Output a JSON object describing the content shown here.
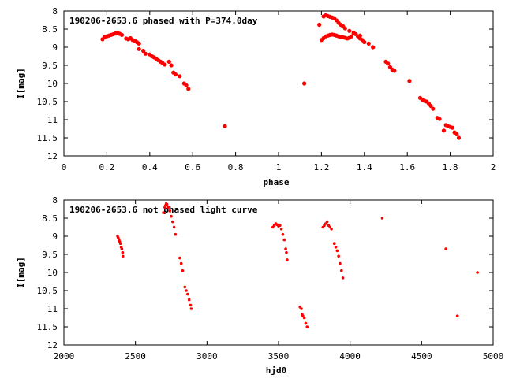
{
  "chart_data": [
    {
      "type": "scatter",
      "title": "190206-2653.6 phased with P=374.0day",
      "xlabel": "phase",
      "ylabel": "I[mag]",
      "xlim": [
        0,
        2
      ],
      "ylim": [
        12,
        8
      ],
      "y_inverted": true,
      "xticks": [
        0,
        0.2,
        0.4,
        0.6,
        0.8,
        1,
        1.2,
        1.4,
        1.6,
        1.8,
        2
      ],
      "xtick_labels": [
        "0",
        "0.2",
        "0.4",
        "0.6",
        "0.8",
        "1",
        "1.2",
        "1.4",
        "1.6",
        "1.8",
        "2"
      ],
      "yticks": [
        8,
        8.5,
        9,
        9.5,
        10,
        10.5,
        11,
        11.5,
        12
      ],
      "ytick_labels": [
        "8",
        "8.5",
        "9",
        "9.5",
        "10",
        "10.5",
        "11",
        "11.5",
        "12"
      ],
      "marker_color": "#ff0000",
      "points": [
        [
          0.18,
          8.78
        ],
        [
          0.19,
          8.72
        ],
        [
          0.2,
          8.7
        ],
        [
          0.21,
          8.68
        ],
        [
          0.22,
          8.66
        ],
        [
          0.23,
          8.64
        ],
        [
          0.24,
          8.62
        ],
        [
          0.25,
          8.6
        ],
        [
          0.26,
          8.63
        ],
        [
          0.27,
          8.66
        ],
        [
          0.29,
          8.76
        ],
        [
          0.3,
          8.78
        ],
        [
          0.31,
          8.75
        ],
        [
          0.32,
          8.8
        ],
        [
          0.33,
          8.82
        ],
        [
          0.34,
          8.86
        ],
        [
          0.35,
          8.9
        ],
        [
          0.35,
          9.05
        ],
        [
          0.37,
          9.1
        ],
        [
          0.38,
          9.18
        ],
        [
          0.4,
          9.2
        ],
        [
          0.41,
          9.25
        ],
        [
          0.42,
          9.28
        ],
        [
          0.43,
          9.32
        ],
        [
          0.44,
          9.36
        ],
        [
          0.45,
          9.4
        ],
        [
          0.46,
          9.44
        ],
        [
          0.47,
          9.48
        ],
        [
          0.49,
          9.4
        ],
        [
          0.5,
          9.5
        ],
        [
          0.51,
          9.7
        ],
        [
          0.52,
          9.75
        ],
        [
          0.54,
          9.8
        ],
        [
          0.56,
          10.0
        ],
        [
          0.57,
          10.05
        ],
        [
          0.58,
          10.15
        ],
        [
          0.75,
          11.18
        ],
        [
          1.12,
          10.0
        ],
        [
          1.19,
          8.38
        ],
        [
          1.2,
          8.8
        ],
        [
          1.21,
          8.75
        ],
        [
          1.22,
          8.7
        ],
        [
          1.23,
          8.68
        ],
        [
          1.24,
          8.66
        ],
        [
          1.25,
          8.65
        ],
        [
          1.26,
          8.66
        ],
        [
          1.27,
          8.68
        ],
        [
          1.28,
          8.7
        ],
        [
          1.29,
          8.72
        ],
        [
          1.3,
          8.72
        ],
        [
          1.31,
          8.74
        ],
        [
          1.32,
          8.76
        ],
        [
          1.33,
          8.74
        ],
        [
          1.34,
          8.7
        ],
        [
          1.35,
          8.6
        ],
        [
          1.36,
          8.64
        ],
        [
          1.37,
          8.7
        ],
        [
          1.38,
          8.76
        ],
        [
          1.39,
          8.8
        ],
        [
          1.4,
          8.86
        ],
        [
          1.42,
          8.9
        ],
        [
          1.44,
          9.0
        ],
        [
          1.21,
          8.15
        ],
        [
          1.22,
          8.12
        ],
        [
          1.23,
          8.14
        ],
        [
          1.24,
          8.16
        ],
        [
          1.25,
          8.18
        ],
        [
          1.26,
          8.2
        ],
        [
          1.27,
          8.26
        ],
        [
          1.28,
          8.33
        ],
        [
          1.29,
          8.38
        ],
        [
          1.3,
          8.42
        ],
        [
          1.31,
          8.48
        ],
        [
          1.33,
          8.55
        ],
        [
          1.35,
          8.62
        ],
        [
          1.38,
          8.68
        ],
        [
          1.5,
          9.4
        ],
        [
          1.51,
          9.45
        ],
        [
          1.52,
          9.55
        ],
        [
          1.53,
          9.62
        ],
        [
          1.54,
          9.65
        ],
        [
          1.61,
          9.93
        ],
        [
          1.66,
          10.4
        ],
        [
          1.67,
          10.45
        ],
        [
          1.68,
          10.48
        ],
        [
          1.69,
          10.5
        ],
        [
          1.7,
          10.55
        ],
        [
          1.71,
          10.62
        ],
        [
          1.72,
          10.7
        ],
        [
          1.74,
          10.95
        ],
        [
          1.75,
          10.98
        ],
        [
          1.77,
          11.3
        ],
        [
          1.78,
          11.15
        ],
        [
          1.79,
          11.18
        ],
        [
          1.8,
          11.2
        ],
        [
          1.81,
          11.22
        ],
        [
          1.82,
          11.35
        ],
        [
          1.83,
          11.4
        ],
        [
          1.84,
          11.5
        ]
      ]
    },
    {
      "type": "scatter",
      "title": "190206-2653.6 not phased light curve",
      "xlabel": "hjd0",
      "ylabel": "I[mag]",
      "xlim": [
        2000,
        5000
      ],
      "ylim": [
        12,
        8
      ],
      "y_inverted": true,
      "xticks": [
        2000,
        2500,
        3000,
        3500,
        4000,
        4500,
        5000
      ],
      "xtick_labels": [
        "2000",
        "2500",
        "3000",
        "3500",
        "4000",
        "4500",
        "5000"
      ],
      "yticks": [
        8,
        8.5,
        9,
        9.5,
        10,
        10.5,
        11,
        11.5,
        12
      ],
      "ytick_labels": [
        "8",
        "8.5",
        "9",
        "9.5",
        "10",
        "10.5",
        "11",
        "11.5",
        "12"
      ],
      "marker_color": "#ff0000",
      "points": [
        [
          2375,
          9.0
        ],
        [
          2380,
          9.05
        ],
        [
          2385,
          9.1
        ],
        [
          2390,
          9.15
        ],
        [
          2395,
          9.2
        ],
        [
          2400,
          9.3
        ],
        [
          2405,
          9.35
        ],
        [
          2410,
          9.45
        ],
        [
          2412,
          9.55
        ],
        [
          2695,
          8.35
        ],
        [
          2705,
          8.2
        ],
        [
          2710,
          8.15
        ],
        [
          2715,
          8.1
        ],
        [
          2720,
          8.12
        ],
        [
          2730,
          8.2
        ],
        [
          2740,
          8.3
        ],
        [
          2750,
          8.45
        ],
        [
          2760,
          8.6
        ],
        [
          2770,
          8.75
        ],
        [
          2780,
          8.95
        ],
        [
          2810,
          9.6
        ],
        [
          2820,
          9.75
        ],
        [
          2830,
          9.95
        ],
        [
          2845,
          10.4
        ],
        [
          2855,
          10.5
        ],
        [
          2865,
          10.6
        ],
        [
          2875,
          10.75
        ],
        [
          2885,
          10.9
        ],
        [
          2890,
          11.0
        ],
        [
          3460,
          8.75
        ],
        [
          3470,
          8.7
        ],
        [
          3480,
          8.65
        ],
        [
          3490,
          8.68
        ],
        [
          3500,
          8.72
        ],
        [
          3510,
          8.7
        ],
        [
          3520,
          8.8
        ],
        [
          3530,
          8.95
        ],
        [
          3540,
          9.1
        ],
        [
          3550,
          9.35
        ],
        [
          3555,
          9.45
        ],
        [
          3560,
          9.65
        ],
        [
          3650,
          10.95
        ],
        [
          3660,
          11.0
        ],
        [
          3665,
          11.15
        ],
        [
          3670,
          11.2
        ],
        [
          3680,
          11.25
        ],
        [
          3690,
          11.4
        ],
        [
          3700,
          11.5
        ],
        [
          3810,
          8.75
        ],
        [
          3820,
          8.7
        ],
        [
          3830,
          8.65
        ],
        [
          3840,
          8.6
        ],
        [
          3850,
          8.7
        ],
        [
          3860,
          8.75
        ],
        [
          3870,
          8.8
        ],
        [
          3890,
          9.2
        ],
        [
          3900,
          9.3
        ],
        [
          3910,
          9.4
        ],
        [
          3920,
          9.55
        ],
        [
          3930,
          9.75
        ],
        [
          3940,
          9.95
        ],
        [
          3950,
          10.15
        ],
        [
          4225,
          8.5
        ],
        [
          4670,
          9.35
        ],
        [
          4750,
          11.2
        ],
        [
          4890,
          10.0
        ]
      ]
    }
  ]
}
